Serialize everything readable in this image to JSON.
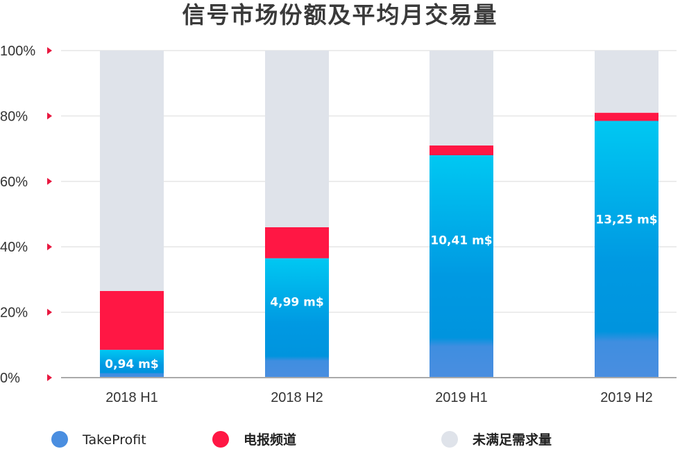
{
  "chart_data": {
    "type": "bar",
    "stacked": true,
    "title": "信号市场份额及平均月交易量",
    "categories": [
      "2018 H1",
      "2018 H2",
      "2019 H1",
      "2019 H2"
    ],
    "ylim": [
      0,
      100
    ],
    "yticks": [
      "0%",
      "20%",
      "40%",
      "60%",
      "80%",
      "100%"
    ],
    "grid": true,
    "legend_position": "bottom",
    "series": [
      {
        "name": "TakeProfit",
        "values": [
          8.5,
          36.5,
          68,
          78.5
        ],
        "color": "#4a8ee0"
      },
      {
        "name": "电报频道",
        "values": [
          18,
          9.5,
          3,
          2.5
        ],
        "color": "#ff1744"
      },
      {
        "name": "未满足需求量",
        "values": [
          73.5,
          54,
          29,
          19
        ],
        "color": "#dfe3ea"
      }
    ],
    "data_labels": [
      "0,94 m$",
      "4,99 m$",
      "10,41 m$",
      "13,25 m$"
    ],
    "colors": {
      "gradient_top": "#00c6f0",
      "gradient_mid": "#0096e0",
      "gradient_bottom": "#4a8ee0",
      "tick_arrow": "#e8173f",
      "gridline": "#e6e6e6",
      "axis": "#aaaaaa"
    }
  }
}
